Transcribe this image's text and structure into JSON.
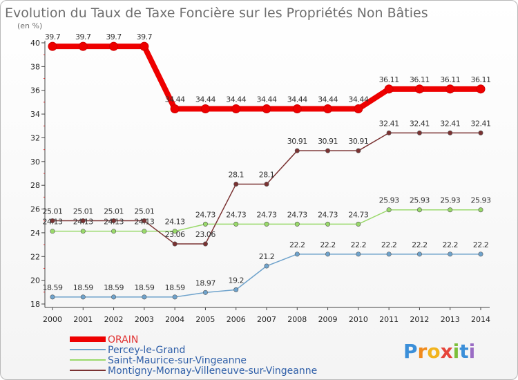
{
  "chart_data": {
    "type": "line",
    "title": "Evolution du Taux de Taxe Foncière sur les Propriétés Non Bâties",
    "ylabel": "(en %)",
    "xlabel": "",
    "ylim": [
      18,
      40
    ],
    "yticks": [
      "18",
      "20",
      "22",
      "24",
      "26",
      "28",
      "30",
      "32",
      "34",
      "36",
      "38",
      "40"
    ],
    "categories": [
      "2000",
      "2001",
      "2002",
      "2003",
      "2004",
      "2005",
      "2006",
      "2007",
      "2008",
      "2009",
      "2010",
      "2011",
      "2012",
      "2013",
      "2014"
    ],
    "series": [
      {
        "name": "ORAIN",
        "color": "#ee0000",
        "values": [
          39.7,
          39.7,
          39.7,
          39.7,
          34.44,
          34.44,
          34.44,
          34.44,
          34.44,
          34.44,
          34.44,
          36.11,
          36.11,
          36.11,
          36.11
        ],
        "labels": [
          "39.7",
          "39.7",
          "39.7",
          "39.7",
          "34.44",
          "34.44",
          "34.44",
          "34.44",
          "34.44",
          "34.44",
          "34.44",
          "36.11",
          "36.11",
          "36.11",
          "36.11"
        ]
      },
      {
        "name": "Percey-le-Grand",
        "color": "#6fa3cc",
        "values": [
          18.59,
          18.59,
          18.59,
          18.59,
          18.59,
          18.97,
          19.2,
          21.2,
          22.2,
          22.2,
          22.2,
          22.2,
          22.2,
          22.2,
          22.2
        ],
        "labels": [
          "18.59",
          "18.59",
          "18.59",
          "18.59",
          "18.59",
          "18.97",
          "19.2",
          "21.2",
          "22.2",
          "22.2",
          "22.2",
          "22.2",
          "22.2",
          "22.2",
          "22.2"
        ]
      },
      {
        "name": "Saint-Maurice-sur-Vingeanne",
        "color": "#99d96a",
        "values": [
          24.13,
          24.13,
          24.13,
          24.13,
          24.13,
          24.73,
          24.73,
          24.73,
          24.73,
          24.73,
          24.73,
          25.93,
          25.93,
          25.93,
          25.93
        ],
        "labels": [
          "24.13",
          "24.13",
          "24.13",
          "24.13",
          "24.13",
          "24.73",
          "24.73",
          "24.73",
          "24.73",
          "24.73",
          "24.73",
          "25.93",
          "25.93",
          "25.93",
          "25.93"
        ]
      },
      {
        "name": "Montigny-Mornay-Villeneuve-sur-Vingeanne",
        "color": "#7a3232",
        "values": [
          25.01,
          25.01,
          25.01,
          25.01,
          23.06,
          23.06,
          28.1,
          28.1,
          30.91,
          30.91,
          30.91,
          32.41,
          32.41,
          32.41,
          32.41
        ],
        "labels": [
          "25.01",
          "25.01",
          "25.01",
          "25.01",
          "23.06",
          "23.06",
          "28.1",
          "28.1",
          "30.91",
          "30.91",
          "30.91",
          "32.41",
          "32.41",
          "32.41",
          "32.41"
        ]
      }
    ],
    "legend_position": "bottom-left",
    "grid": false
  },
  "brand": {
    "letters": [
      "P",
      "r",
      "o",
      "x",
      "i",
      "t",
      "i"
    ],
    "colors": [
      "#3b8fd9",
      "#f08a1c",
      "#f2b41e",
      "#e6453b",
      "#7cbf3a",
      "#3b8fd9",
      "#9a6cc4"
    ]
  }
}
